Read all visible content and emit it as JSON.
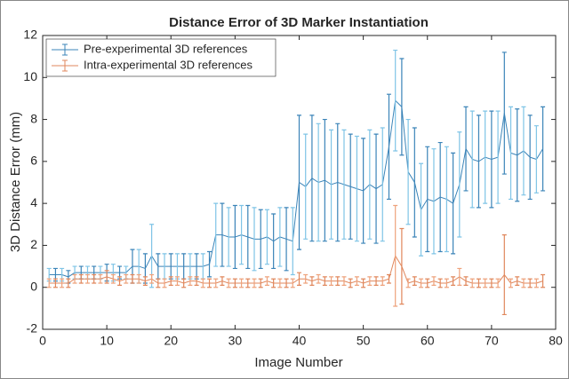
{
  "chart_data": {
    "type": "errorbar_line",
    "title": "Distance Error of 3D Marker Instantiation",
    "x_label": "Image Number",
    "y_label": "3D Distance Error (mm)",
    "x": [
      1,
      2,
      3,
      4,
      5,
      6,
      7,
      8,
      9,
      10,
      11,
      12,
      13,
      14,
      15,
      16,
      17,
      18,
      19,
      20,
      21,
      22,
      23,
      24,
      25,
      26,
      27,
      28,
      29,
      30,
      31,
      32,
      33,
      34,
      35,
      36,
      37,
      38,
      39,
      40,
      41,
      42,
      43,
      44,
      45,
      46,
      47,
      48,
      49,
      50,
      51,
      52,
      53,
      54,
      55,
      56,
      57,
      58,
      59,
      60,
      61,
      62,
      63,
      64,
      65,
      66,
      67,
      68,
      69,
      70,
      71,
      72,
      73,
      74,
      75,
      76,
      77,
      78
    ],
    "series": [
      {
        "name": "Pre-experimental 3D references",
        "color": "#3b84b8",
        "values": [
          0.6,
          0.6,
          0.6,
          0.5,
          0.7,
          0.7,
          0.7,
          0.7,
          0.7,
          0.7,
          0.7,
          0.7,
          0.7,
          1.0,
          1.0,
          0.9,
          1.5,
          1.0,
          1.0,
          1.0,
          1.0,
          1.0,
          1.0,
          1.0,
          1.0,
          1.1,
          2.5,
          2.5,
          2.4,
          2.4,
          2.5,
          2.4,
          2.3,
          2.3,
          2.4,
          2.2,
          2.4,
          2.3,
          2.2,
          5.0,
          4.8,
          5.2,
          5.0,
          5.1,
          4.9,
          5.0,
          4.9,
          4.8,
          4.7,
          4.6,
          4.9,
          4.7,
          4.9,
          6.7,
          8.9,
          8.6,
          5.5,
          5.0,
          3.7,
          4.2,
          4.1,
          4.3,
          4.2,
          4.0,
          4.9,
          6.6,
          6.1,
          6.0,
          6.2,
          6.1,
          6.2,
          8.3,
          6.4,
          6.3,
          6.5,
          6.2,
          6.1,
          6.6
        ],
        "errors": [
          0.3,
          0.3,
          0.3,
          0.3,
          0.3,
          0.3,
          0.3,
          0.3,
          0.3,
          0.4,
          0.4,
          0.3,
          0.3,
          0.8,
          0.8,
          0.7,
          1.5,
          0.6,
          0.6,
          0.6,
          0.6,
          0.6,
          0.6,
          0.6,
          0.6,
          0.6,
          1.5,
          1.5,
          1.4,
          1.5,
          1.4,
          1.5,
          1.5,
          1.4,
          1.3,
          1.3,
          1.4,
          1.5,
          1.6,
          3.2,
          2.5,
          3.0,
          2.8,
          2.9,
          2.6,
          2.8,
          2.6,
          2.5,
          2.5,
          2.5,
          2.6,
          2.6,
          2.7,
          2.5,
          2.4,
          2.3,
          2.5,
          2.6,
          2.2,
          2.5,
          2.5,
          2.6,
          2.5,
          2.4,
          2.5,
          2.0,
          2.3,
          2.2,
          2.2,
          2.3,
          2.2,
          2.9,
          2.2,
          2.2,
          2.1,
          2.0,
          1.6,
          2.0
        ]
      },
      {
        "name": "Intra-experimental 3D references",
        "color": "#e0875c",
        "values": [
          0.2,
          0.2,
          0.2,
          0.2,
          0.4,
          0.4,
          0.4,
          0.4,
          0.4,
          0.5,
          0.4,
          0.3,
          0.4,
          0.4,
          0.4,
          0.3,
          0.4,
          0.2,
          0.2,
          0.3,
          0.3,
          0.2,
          0.3,
          0.3,
          0.2,
          0.2,
          0.2,
          0.3,
          0.2,
          0.2,
          0.2,
          0.2,
          0.2,
          0.2,
          0.3,
          0.2,
          0.2,
          0.2,
          0.2,
          0.4,
          0.4,
          0.3,
          0.4,
          0.3,
          0.3,
          0.3,
          0.3,
          0.2,
          0.3,
          0.2,
          0.3,
          0.3,
          0.3,
          0.4,
          1.5,
          1.0,
          0.2,
          0.3,
          0.2,
          0.2,
          0.3,
          0.2,
          0.2,
          0.3,
          0.5,
          0.3,
          0.2,
          0.2,
          0.2,
          0.2,
          0.2,
          0.6,
          0.2,
          0.3,
          0.2,
          0.2,
          0.2,
          0.3
        ],
        "errors": [
          0.2,
          0.2,
          0.2,
          0.2,
          0.2,
          0.2,
          0.2,
          0.2,
          0.2,
          0.3,
          0.2,
          0.2,
          0.2,
          0.2,
          0.2,
          0.2,
          0.2,
          0.2,
          0.2,
          0.2,
          0.2,
          0.2,
          0.2,
          0.2,
          0.2,
          0.2,
          0.2,
          0.2,
          0.2,
          0.2,
          0.2,
          0.2,
          0.2,
          0.2,
          0.2,
          0.2,
          0.2,
          0.2,
          0.2,
          0.3,
          0.2,
          0.2,
          0.2,
          0.2,
          0.2,
          0.2,
          0.2,
          0.2,
          0.2,
          0.2,
          0.2,
          0.2,
          0.2,
          0.2,
          2.4,
          1.8,
          0.2,
          0.2,
          0.2,
          0.2,
          0.2,
          0.2,
          0.2,
          0.2,
          0.4,
          0.2,
          0.2,
          0.2,
          0.2,
          0.2,
          0.2,
          1.9,
          0.2,
          0.2,
          0.2,
          0.2,
          0.2,
          0.3
        ]
      }
    ],
    "xlim": [
      0,
      80
    ],
    "xticks": [
      0,
      10,
      20,
      30,
      40,
      50,
      60,
      70,
      80
    ],
    "ylim": [
      -2,
      12
    ],
    "yticks": [
      -2,
      0,
      2,
      4,
      6,
      8,
      10,
      12
    ],
    "legend": "upper left"
  }
}
